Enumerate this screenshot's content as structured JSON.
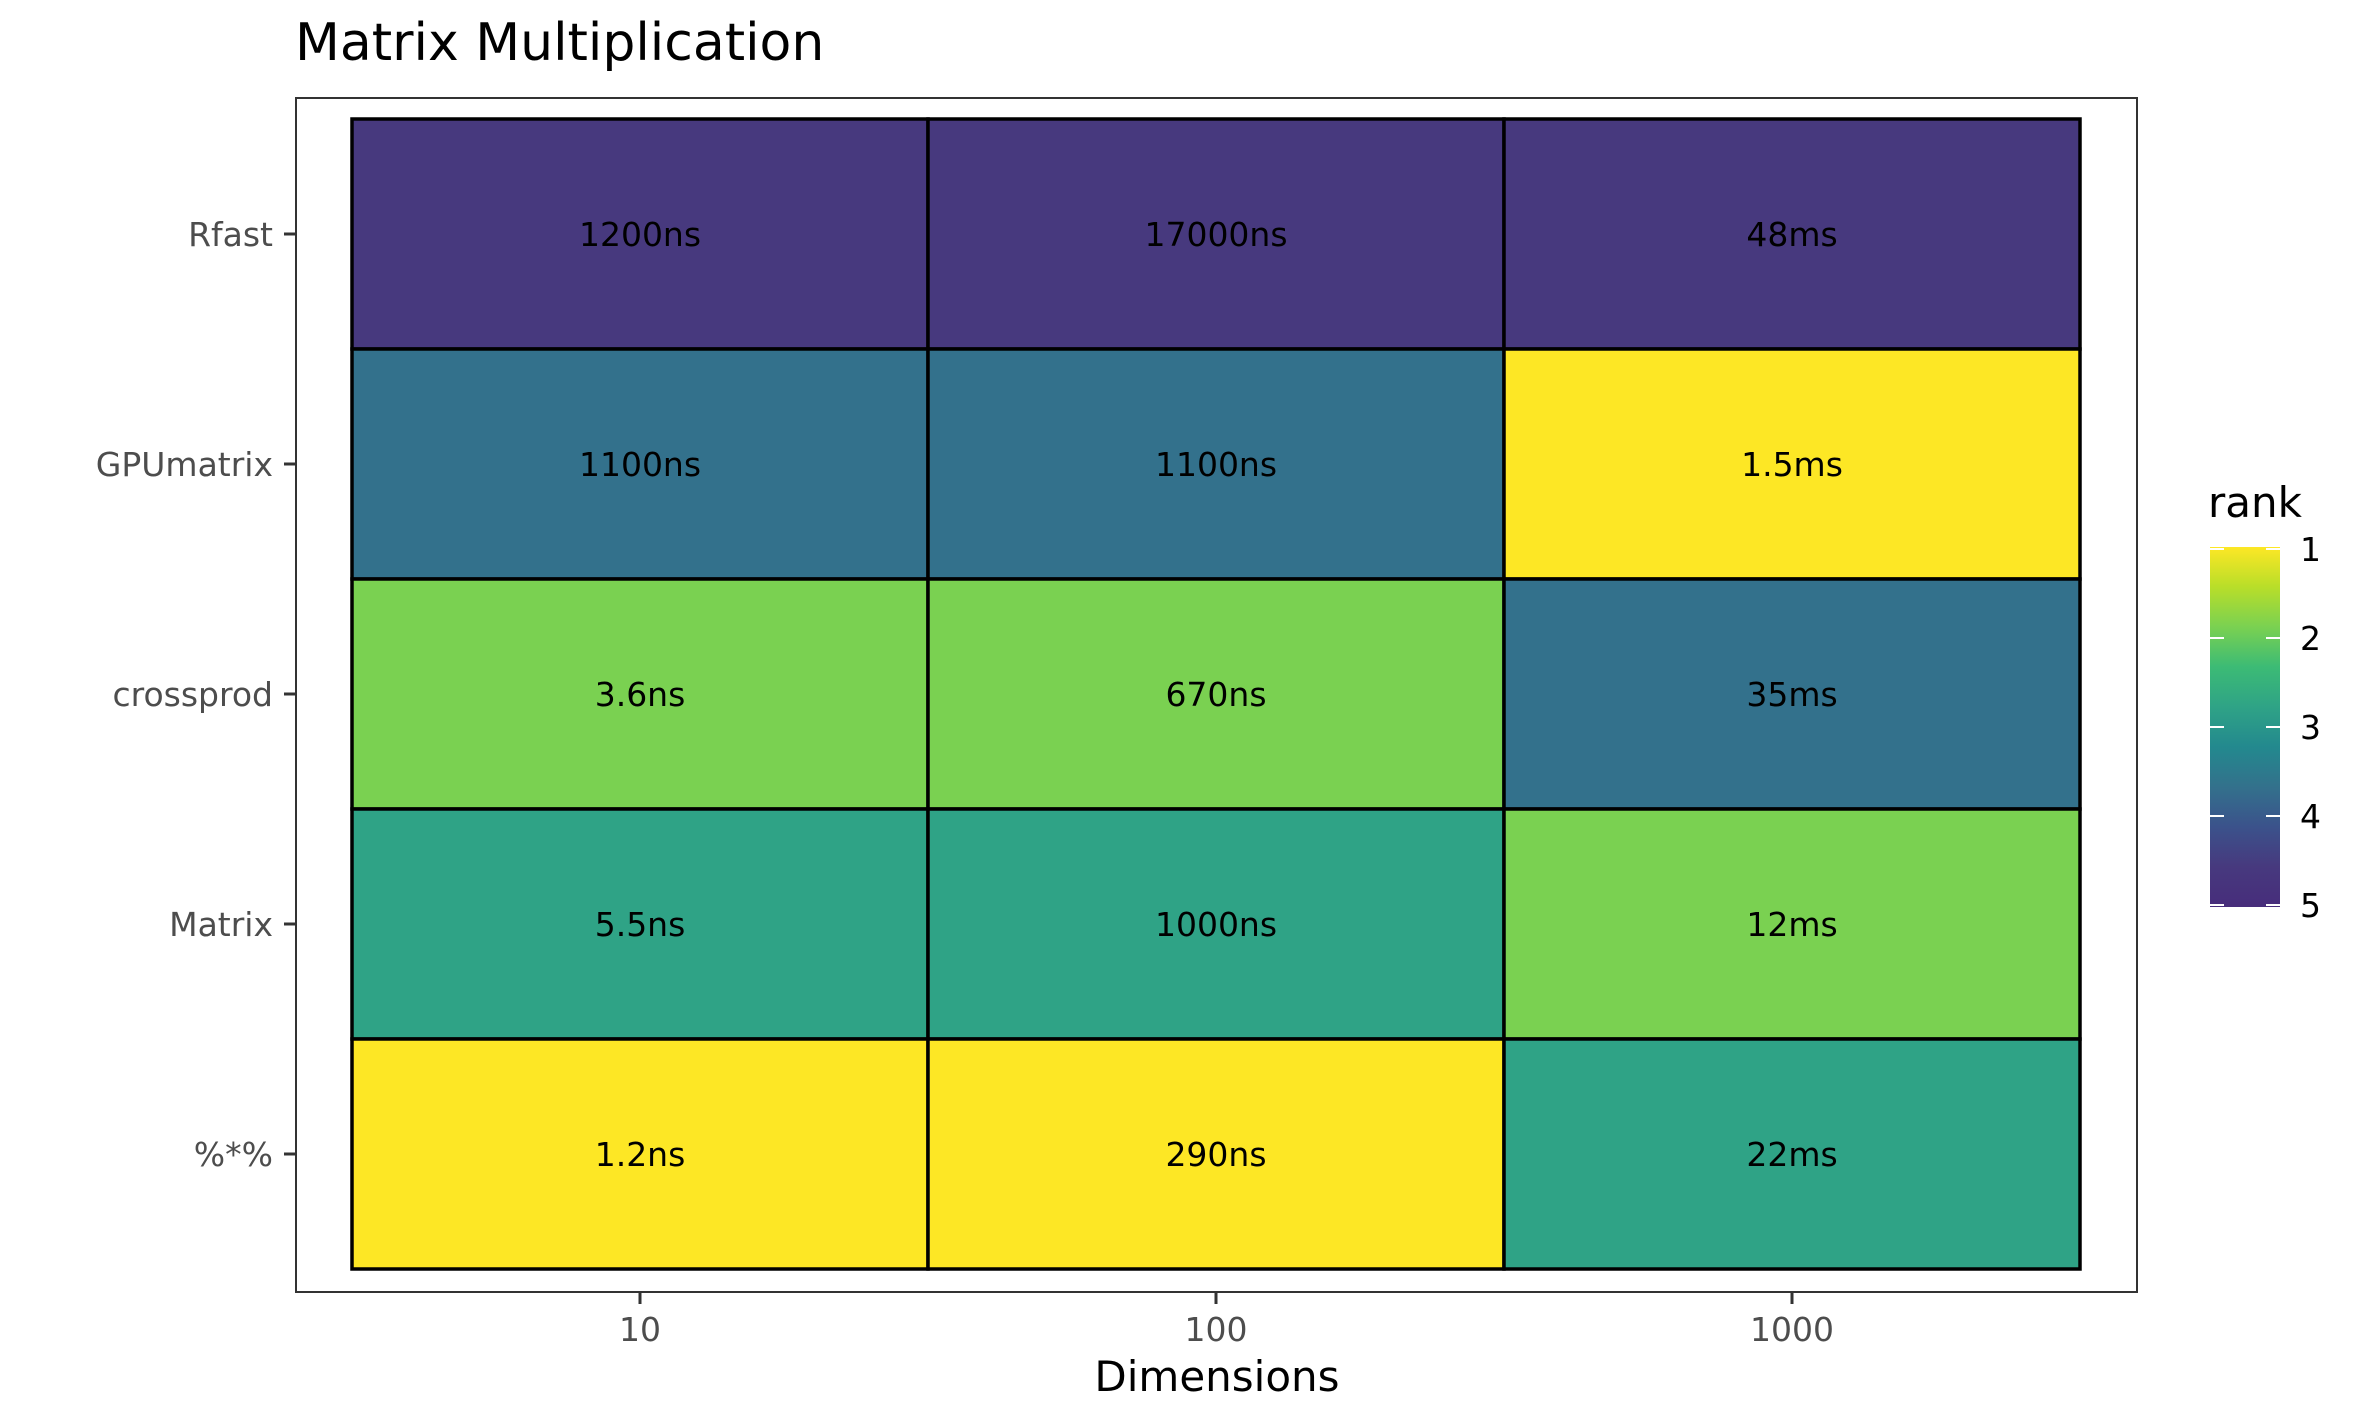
{
  "chart_data": {
    "type": "heatmap",
    "title": "Matrix Multiplication",
    "xlabel": "Dimensions",
    "ylabel": "",
    "x_categories": [
      "10",
      "100",
      "1000"
    ],
    "y_categories_top_to_bottom": [
      "Rfast",
      "GPUmatrix",
      "crossprod",
      "Matrix",
      "%*%"
    ],
    "cells": [
      {
        "y": "Rfast",
        "x": "10",
        "label": "1200ns",
        "rank": 5
      },
      {
        "y": "Rfast",
        "x": "100",
        "label": "17000ns",
        "rank": 5
      },
      {
        "y": "Rfast",
        "x": "1000",
        "label": "48ms",
        "rank": 5
      },
      {
        "y": "GPUmatrix",
        "x": "10",
        "label": "1100ns",
        "rank": 4
      },
      {
        "y": "GPUmatrix",
        "x": "100",
        "label": "1100ns",
        "rank": 4
      },
      {
        "y": "GPUmatrix",
        "x": "1000",
        "label": "1.5ms",
        "rank": 1
      },
      {
        "y": "crossprod",
        "x": "10",
        "label": "3.6ns",
        "rank": 2
      },
      {
        "y": "crossprod",
        "x": "100",
        "label": "670ns",
        "rank": 2
      },
      {
        "y": "crossprod",
        "x": "1000",
        "label": "35ms",
        "rank": 4
      },
      {
        "y": "Matrix",
        "x": "10",
        "label": "5.5ns",
        "rank": 3
      },
      {
        "y": "Matrix",
        "x": "100",
        "label": "1000ns",
        "rank": 3
      },
      {
        "y": "Matrix",
        "x": "1000",
        "label": "12ms",
        "rank": 2
      },
      {
        "y": "%*%",
        "x": "10",
        "label": "1.2ns",
        "rank": 1
      },
      {
        "y": "%*%",
        "x": "100",
        "label": "290ns",
        "rank": 1
      },
      {
        "y": "%*%",
        "x": "1000",
        "label": "22ms",
        "rank": 3
      }
    ],
    "legend": {
      "title": "rank",
      "position": "right",
      "breaks": [
        "1",
        "2",
        "3",
        "4",
        "5"
      ],
      "rank_colors": {
        "1": "#FDE725",
        "2": "#7AD151",
        "3": "#2FA386",
        "4": "#33718C",
        "5": "#47397E"
      },
      "gradient_stops": [
        "#FDE725",
        "#B8DE29",
        "#7AD151",
        "#3CBB75",
        "#2FA386",
        "#23898E",
        "#33718C",
        "#3B528B",
        "#47397E",
        "#472D7B"
      ]
    },
    "grid": false
  }
}
